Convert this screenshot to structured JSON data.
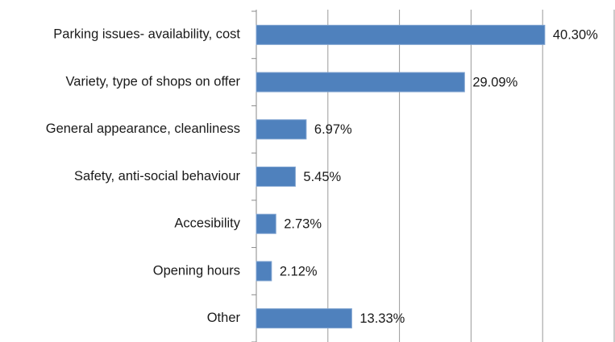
{
  "chart_data": {
    "type": "bar",
    "orientation": "horizontal",
    "categories": [
      "Parking issues- availability, cost",
      "Variety, type of shops on offer",
      "General appearance, cleanliness",
      "Safety, anti-social behaviour",
      "Accesibility",
      "Opening hours",
      "Other"
    ],
    "values": [
      40.3,
      29.09,
      6.97,
      5.45,
      2.73,
      2.12,
      13.33
    ],
    "value_labels": [
      "40.30%",
      "29.09%",
      "6.97%",
      "5.45%",
      "2.73%",
      "2.12%",
      "13.33%"
    ],
    "color": "#4f81bd",
    "xlim": [
      0,
      50
    ],
    "xticks": [
      0,
      10,
      20,
      30,
      40,
      50
    ],
    "grid": true
  }
}
